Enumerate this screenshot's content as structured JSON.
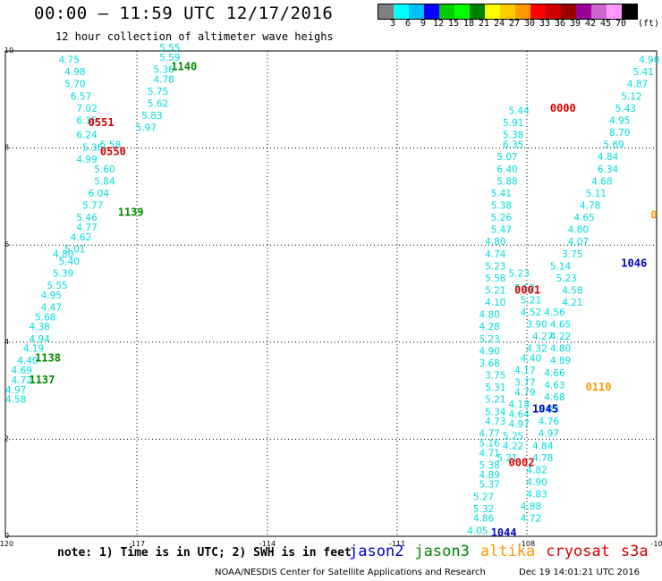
{
  "header": {
    "title": "00:00 — 11:59 UTC 12/17/2016",
    "subtitle": "12 hour collection of altimeter wave heighs"
  },
  "colorbar": {
    "unit": "(ft)",
    "colors": [
      "#7f7f7f",
      "#00ffff",
      "#00bfff",
      "#0000ff",
      "#00cc00",
      "#00ff00",
      "#008000",
      "#ffff00",
      "#ffcc00",
      "#ff9900",
      "#ff0000",
      "#cc0000",
      "#990000",
      "#990099",
      "#cc66cc",
      "#ff99ff",
      "#000000"
    ],
    "labels": [
      "3",
      "6",
      "9",
      "12",
      "15",
      "18",
      "21",
      "24",
      "27",
      "30",
      "33",
      "36",
      "39",
      "42",
      "45",
      "70"
    ]
  },
  "note": "note: 1) Time is in UTC; 2) SWH is in feet",
  "satellites": [
    {
      "name": "jason2",
      "color": "#0000cc"
    },
    {
      "name": "jason3",
      "color": "#008800"
    },
    {
      "name": "altika",
      "color": "#ff9900"
    },
    {
      "name": "cryosat",
      "color": "#dd0000"
    },
    {
      "name": "s3a",
      "color": "#cc0000"
    }
  ],
  "footer": {
    "left": "NOAA/NESDIS Center for Satellite Applications and Research",
    "right": "Dec 19 14:01:21 UTC 2016"
  },
  "chart_data": {
    "type": "scatter",
    "xlim": [
      -120,
      -109
    ],
    "ylim": [
      0,
      10
    ],
    "x_ticks": [
      "-120",
      "-117",
      "-114",
      "-111",
      "-108",
      "-10"
    ],
    "y_ticks": [
      "0",
      "2",
      "4",
      "6",
      "8",
      "10"
    ],
    "grid": true,
    "swh_color": "#00dddd",
    "swh_points": [
      {
        "x": -119.1,
        "y": 9.75,
        "v": "4.75"
      },
      {
        "x": -119.0,
        "y": 9.5,
        "v": "4.98"
      },
      {
        "x": -119.0,
        "y": 9.25,
        "v": "5.70"
      },
      {
        "x": -118.9,
        "y": 9.0,
        "v": "6.57"
      },
      {
        "x": -118.8,
        "y": 8.75,
        "v": "7.02"
      },
      {
        "x": -118.8,
        "y": 8.5,
        "v": "6.15"
      },
      {
        "x": -118.8,
        "y": 8.2,
        "v": "6.24"
      },
      {
        "x": -118.7,
        "y": 7.95,
        "v": "5.36"
      },
      {
        "x": -118.8,
        "y": 7.7,
        "v": "4.99"
      },
      {
        "x": -118.4,
        "y": 8.0,
        "v": "5.58"
      },
      {
        "x": -118.5,
        "y": 7.5,
        "v": "5.60"
      },
      {
        "x": -118.5,
        "y": 7.25,
        "v": "5.84"
      },
      {
        "x": -118.6,
        "y": 7.0,
        "v": "6.04"
      },
      {
        "x": -118.7,
        "y": 6.75,
        "v": "5.77"
      },
      {
        "x": -118.8,
        "y": 6.5,
        "v": "5.46"
      },
      {
        "x": -118.8,
        "y": 6.3,
        "v": "4.77"
      },
      {
        "x": -118.9,
        "y": 6.1,
        "v": "4.62"
      },
      {
        "x": -119.0,
        "y": 5.85,
        "v": "5.01"
      },
      {
        "x": -119.1,
        "y": 5.6,
        "v": "5.40"
      },
      {
        "x": -119.2,
        "y": 5.75,
        "v": "4.80"
      },
      {
        "x": -119.2,
        "y": 5.35,
        "v": "5.39"
      },
      {
        "x": -119.3,
        "y": 5.1,
        "v": "5.55"
      },
      {
        "x": -119.4,
        "y": 4.9,
        "v": "4.95"
      },
      {
        "x": -119.4,
        "y": 4.65,
        "v": "4.47"
      },
      {
        "x": -119.5,
        "y": 4.45,
        "v": "5.68"
      },
      {
        "x": -119.6,
        "y": 4.25,
        "v": "4.38"
      },
      {
        "x": -119.6,
        "y": 4.0,
        "v": "4.94"
      },
      {
        "x": -119.7,
        "y": 3.8,
        "v": "4.19"
      },
      {
        "x": -119.8,
        "y": 3.55,
        "v": "4.40"
      },
      {
        "x": -119.9,
        "y": 3.35,
        "v": "4.69"
      },
      {
        "x": -119.9,
        "y": 3.15,
        "v": "4.72"
      },
      {
        "x": -120.0,
        "y": 2.95,
        "v": "4.97"
      },
      {
        "x": -120.0,
        "y": 2.75,
        "v": "4.58"
      },
      {
        "x": -117.4,
        "y": 10.0,
        "v": "5.55"
      },
      {
        "x": -117.4,
        "y": 9.8,
        "v": "5.59"
      },
      {
        "x": -117.5,
        "y": 9.55,
        "v": "5.36"
      },
      {
        "x": -117.5,
        "y": 9.35,
        "v": "4.78"
      },
      {
        "x": -117.6,
        "y": 9.1,
        "v": "5.75"
      },
      {
        "x": -117.6,
        "y": 8.85,
        "v": "5.62"
      },
      {
        "x": -117.7,
        "y": 8.6,
        "v": "5.83"
      },
      {
        "x": -117.8,
        "y": 8.35,
        "v": "5.97"
      },
      {
        "x": -111.5,
        "y": 8.7,
        "v": "5.44"
      },
      {
        "x": -111.6,
        "y": 8.45,
        "v": "5.91"
      },
      {
        "x": -111.6,
        "y": 8.2,
        "v": "5.38"
      },
      {
        "x": -111.6,
        "y": 8.0,
        "v": "6.35"
      },
      {
        "x": -111.7,
        "y": 7.75,
        "v": "5.07"
      },
      {
        "x": -111.7,
        "y": 7.5,
        "v": "6.40"
      },
      {
        "x": -111.7,
        "y": 7.25,
        "v": "5.88"
      },
      {
        "x": -111.8,
        "y": 7.0,
        "v": "5.41"
      },
      {
        "x": -111.8,
        "y": 6.75,
        "v": "5.38"
      },
      {
        "x": -111.8,
        "y": 6.5,
        "v": "5.26"
      },
      {
        "x": -111.8,
        "y": 6.25,
        "v": "5.47"
      },
      {
        "x": -111.9,
        "y": 6.0,
        "v": "4.80"
      },
      {
        "x": -111.9,
        "y": 5.75,
        "v": "4.74"
      },
      {
        "x": -111.9,
        "y": 5.5,
        "v": "5.23"
      },
      {
        "x": -111.9,
        "y": 5.25,
        "v": "5.58"
      },
      {
        "x": -111.9,
        "y": 5.0,
        "v": "5.21"
      },
      {
        "x": -111.9,
        "y": 4.75,
        "v": "4.10"
      },
      {
        "x": -112.0,
        "y": 4.5,
        "v": "4.80"
      },
      {
        "x": -112.0,
        "y": 4.25,
        "v": "4.28"
      },
      {
        "x": -112.0,
        "y": 4.0,
        "v": "5.23"
      },
      {
        "x": -112.0,
        "y": 3.75,
        "v": "4.90"
      },
      {
        "x": -112.0,
        "y": 3.5,
        "v": "3.68"
      },
      {
        "x": -111.9,
        "y": 3.25,
        "v": "3.75"
      },
      {
        "x": -111.9,
        "y": 3.0,
        "v": "5.31"
      },
      {
        "x": -111.9,
        "y": 2.75,
        "v": "5.21"
      },
      {
        "x": -111.9,
        "y": 2.5,
        "v": "5.34"
      },
      {
        "x": -111.9,
        "y": 2.3,
        "v": "4.73"
      },
      {
        "x": -112.0,
        "y": 2.05,
        "v": "4.77"
      },
      {
        "x": -112.0,
        "y": 1.85,
        "v": "5.16"
      },
      {
        "x": -112.0,
        "y": 1.65,
        "v": "4.71"
      },
      {
        "x": -112.0,
        "y": 1.4,
        "v": "5.38"
      },
      {
        "x": -112.0,
        "y": 1.2,
        "v": "4.89"
      },
      {
        "x": -112.0,
        "y": 1.0,
        "v": "5.37"
      },
      {
        "x": -112.1,
        "y": 0.75,
        "v": "5.27"
      },
      {
        "x": -112.1,
        "y": 0.5,
        "v": "5.32"
      },
      {
        "x": -112.1,
        "y": 0.3,
        "v": "4.86"
      },
      {
        "x": -112.2,
        "y": 0.05,
        "v": "4.05"
      },
      {
        "x": -111.5,
        "y": 5.35,
        "v": "5.23"
      },
      {
        "x": -111.4,
        "y": 5.05,
        "v": "5.52"
      },
      {
        "x": -111.3,
        "y": 4.8,
        "v": "5.21"
      },
      {
        "x": -111.3,
        "y": 4.55,
        "v": "4.52"
      },
      {
        "x": -111.2,
        "y": 4.3,
        "v": "3.90"
      },
      {
        "x": -111.1,
        "y": 4.05,
        "v": "4.27"
      },
      {
        "x": -111.2,
        "y": 3.8,
        "v": "4.32"
      },
      {
        "x": -111.3,
        "y": 3.6,
        "v": "4.40"
      },
      {
        "x": -111.4,
        "y": 3.35,
        "v": "4.17"
      },
      {
        "x": -111.4,
        "y": 3.1,
        "v": "3.77"
      },
      {
        "x": -111.4,
        "y": 2.9,
        "v": "4.79"
      },
      {
        "x": -111.5,
        "y": 2.65,
        "v": "4.18"
      },
      {
        "x": -111.5,
        "y": 2.45,
        "v": "4.64"
      },
      {
        "x": -111.5,
        "y": 2.25,
        "v": "4.97"
      },
      {
        "x": -111.6,
        "y": 2.0,
        "v": "5.25"
      },
      {
        "x": -111.6,
        "y": 1.8,
        "v": "4.22"
      },
      {
        "x": -111.7,
        "y": 1.55,
        "v": "5.21"
      },
      {
        "x": -110.9,
        "y": 4.55,
        "v": "4.56"
      },
      {
        "x": -110.8,
        "y": 4.3,
        "v": "4.65"
      },
      {
        "x": -110.8,
        "y": 4.05,
        "v": "4.22"
      },
      {
        "x": -110.8,
        "y": 3.8,
        "v": "4.80"
      },
      {
        "x": -110.8,
        "y": 3.55,
        "v": "4.89"
      },
      {
        "x": -110.9,
        "y": 3.3,
        "v": "4.66"
      },
      {
        "x": -110.9,
        "y": 3.05,
        "v": "4.63"
      },
      {
        "x": -110.9,
        "y": 2.8,
        "v": "4.68"
      },
      {
        "x": -111.0,
        "y": 2.55,
        "v": "5.03"
      },
      {
        "x": -111.0,
        "y": 2.3,
        "v": "4.76"
      },
      {
        "x": -111.0,
        "y": 2.05,
        "v": "4.97"
      },
      {
        "x": -111.1,
        "y": 1.8,
        "v": "4.84"
      },
      {
        "x": -111.1,
        "y": 1.55,
        "v": "4.78"
      },
      {
        "x": -111.2,
        "y": 1.3,
        "v": "4.82"
      },
      {
        "x": -111.2,
        "y": 1.05,
        "v": "4.90"
      },
      {
        "x": -111.2,
        "y": 0.8,
        "v": "4.83"
      },
      {
        "x": -111.3,
        "y": 0.55,
        "v": "4.88"
      },
      {
        "x": -111.3,
        "y": 0.3,
        "v": "4.72"
      },
      {
        "x": -110.7,
        "y": 5.25,
        "v": "5.23"
      },
      {
        "x": -110.6,
        "y": 5.0,
        "v": "4.58"
      },
      {
        "x": -110.6,
        "y": 4.75,
        "v": "4.21"
      },
      {
        "x": -110.8,
        "y": 5.5,
        "v": "5.14"
      },
      {
        "x": -110.6,
        "y": 5.75,
        "v": "3.75"
      },
      {
        "x": -110.5,
        "y": 6.0,
        "v": "4.07"
      },
      {
        "x": -110.5,
        "y": 6.25,
        "v": "4.80"
      },
      {
        "x": -110.4,
        "y": 6.5,
        "v": "4.65"
      },
      {
        "x": -110.3,
        "y": 6.75,
        "v": "4.78"
      },
      {
        "x": -110.2,
        "y": 7.0,
        "v": "5.11"
      },
      {
        "x": -110.1,
        "y": 7.25,
        "v": "4.68"
      },
      {
        "x": -110.0,
        "y": 7.5,
        "v": "6.34"
      },
      {
        "x": -110.0,
        "y": 7.75,
        "v": "4.84"
      },
      {
        "x": -109.9,
        "y": 8.0,
        "v": "5.69"
      },
      {
        "x": -109.8,
        "y": 8.25,
        "v": "8.70"
      },
      {
        "x": -109.8,
        "y": 8.5,
        "v": "4.95"
      },
      {
        "x": -109.7,
        "y": 8.75,
        "v": "5.43"
      },
      {
        "x": -109.6,
        "y": 9.0,
        "v": "5.12"
      },
      {
        "x": -109.5,
        "y": 9.25,
        "v": "4.87"
      },
      {
        "x": -109.4,
        "y": 9.5,
        "v": "5.41"
      },
      {
        "x": -109.3,
        "y": 9.75,
        "v": "4.90"
      }
    ],
    "time_labels": [
      {
        "x": -117.2,
        "y": 9.6,
        "t": "1140",
        "sat": "jason3"
      },
      {
        "x": -118.6,
        "y": 8.45,
        "t": "0551",
        "sat": "s3a"
      },
      {
        "x": -118.4,
        "y": 7.85,
        "t": "0550",
        "sat": "s3a"
      },
      {
        "x": -118.1,
        "y": 6.6,
        "t": "1139",
        "sat": "jason3"
      },
      {
        "x": -119.5,
        "y": 3.6,
        "t": "1138",
        "sat": "jason3"
      },
      {
        "x": -119.6,
        "y": 3.15,
        "t": "1137",
        "sat": "jason3"
      },
      {
        "x": -110.8,
        "y": 8.75,
        "t": "0000",
        "sat": "cryosat"
      },
      {
        "x": -111.4,
        "y": 5.0,
        "t": "0001",
        "sat": "cryosat"
      },
      {
        "x": -109.6,
        "y": 5.55,
        "t": "1046",
        "sat": "jason2"
      },
      {
        "x": -109.1,
        "y": 6.55,
        "t": "0",
        "sat": "altika"
      },
      {
        "x": -110.2,
        "y": 3.0,
        "t": "0110",
        "sat": "altika"
      },
      {
        "x": -111.1,
        "y": 2.55,
        "t": "1045",
        "sat": "jason2"
      },
      {
        "x": -111.5,
        "y": 1.45,
        "t": "0002",
        "sat": "cryosat"
      },
      {
        "x": -111.8,
        "y": 0.0,
        "t": "1044",
        "sat": "jason2"
      }
    ]
  }
}
